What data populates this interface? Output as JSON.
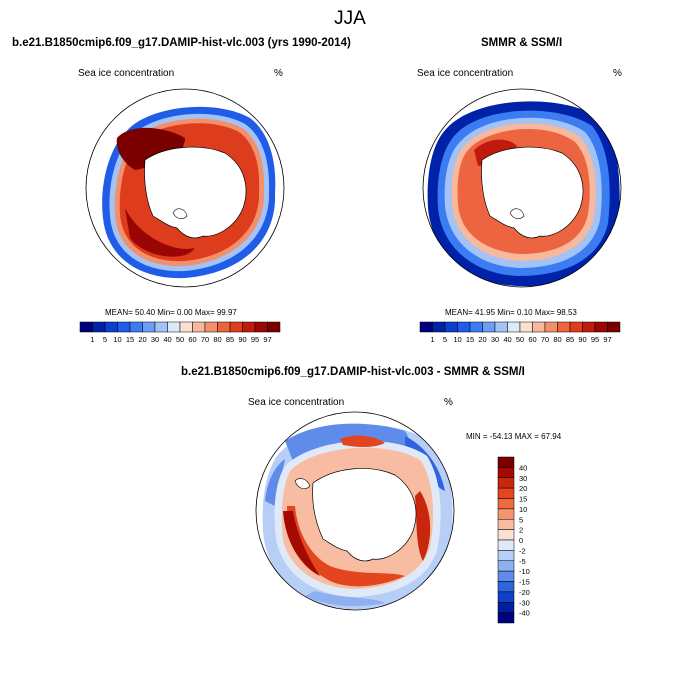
{
  "page_title": "JJA",
  "panels": [
    {
      "title": "b.e21.B1850cmip6.f09_g17.DAMIP-hist-vlc.003 (yrs 1990-2014)",
      "variable": "Sea ice concentration",
      "units": "%",
      "stats": "MEAN=  50.40  Min=   0.00  Max=  99.97"
    },
    {
      "title": "SMMR & SSM/I",
      "variable": "Sea ice concentration",
      "units": "%",
      "stats": "MEAN=  41.95  Min=   0.10  Max=  98.53"
    },
    {
      "title": "b.e21.B1850cmip6.f09_g17.DAMIP-hist-vlc.003 - SMMR & SSM/I",
      "variable": "Sea ice concentration",
      "units": "%",
      "stats": "MIN = -54.13 MAX =  67.94"
    }
  ],
  "concentration_colorbar": {
    "labels": [
      "1",
      "5",
      "10",
      "15",
      "20",
      "30",
      "40",
      "50",
      "60",
      "70",
      "80",
      "85",
      "90",
      "95",
      "97"
    ],
    "colors": [
      "#00007f",
      "#0022a8",
      "#0a3fd0",
      "#1f5ce8",
      "#3c7cf2",
      "#6c9ef5",
      "#a3c3f7",
      "#dceaf8",
      "#fbe0d0",
      "#f7b89b",
      "#f48f6b",
      "#ec6540",
      "#dd3c1d",
      "#c01a0c",
      "#990603",
      "#7a0000"
    ]
  },
  "difference_colorbar": {
    "labels": [
      "40",
      "30",
      "20",
      "15",
      "10",
      "5",
      "2",
      "0",
      "-2",
      "-5",
      "-10",
      "-15",
      "-20",
      "-30",
      "-40"
    ],
    "colors": [
      "#7a0000",
      "#a40a02",
      "#c8260d",
      "#e3461f",
      "#f06a3e",
      "#f59470",
      "#f8bca3",
      "#fbe0d3",
      "#dfe9f7",
      "#b7cef6",
      "#8eb0f1",
      "#5f8bea",
      "#2f63e0",
      "#1040c8",
      "#0020a0",
      "#000080"
    ]
  }
}
